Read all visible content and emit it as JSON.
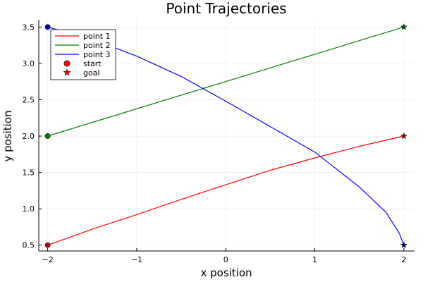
{
  "chart_data": {
    "type": "line",
    "title": "Point Trajectories",
    "xlabel": "x position",
    "ylabel": "y position",
    "xlim": [
      -2.1,
      2.12
    ],
    "ylim": [
      0.42,
      3.6
    ],
    "xticks": [
      -2,
      -1,
      0,
      1,
      2
    ],
    "xtick_labels": [
      "−2",
      "−1",
      "0",
      "1",
      "2"
    ],
    "yticks": [
      0.5,
      1.0,
      1.5,
      2.0,
      2.5,
      3.0,
      3.5
    ],
    "ytick_labels": [
      "0.5",
      "1.0",
      "1.5",
      "2.0",
      "2.5",
      "3.0",
      "3.5"
    ],
    "grid": true,
    "legend_position": "top-left",
    "series": [
      {
        "name": "point 1",
        "color": "#ff0000",
        "x": [
          -2,
          -1.5,
          -1,
          -0.5,
          0,
          0.5,
          1,
          1.5,
          2
        ],
        "y": [
          0.5,
          0.72,
          0.92,
          1.13,
          1.33,
          1.53,
          1.7,
          1.86,
          2.0
        ]
      },
      {
        "name": "point 2",
        "color": "#008000",
        "x": [
          -2,
          2
        ],
        "y": [
          2.0,
          3.5
        ]
      },
      {
        "name": "point 3",
        "color": "#0000ff",
        "x": [
          -2,
          -1.5,
          -1,
          -0.5,
          0,
          0.5,
          1,
          1.5,
          1.8,
          1.95,
          2
        ],
        "y": [
          3.5,
          3.33,
          3.1,
          2.82,
          2.48,
          2.13,
          1.78,
          1.3,
          0.95,
          0.66,
          0.5
        ]
      }
    ],
    "markers": [
      {
        "kind": "start",
        "name": "start",
        "x": -2,
        "y": 0.5,
        "color": "#d00000"
      },
      {
        "kind": "start",
        "name": "start",
        "x": -2,
        "y": 2.0,
        "color": "#008000"
      },
      {
        "kind": "start",
        "name": "start",
        "x": -2,
        "y": 3.5,
        "color": "#0000cc"
      },
      {
        "kind": "goal",
        "name": "goal",
        "x": 2,
        "y": 2.0,
        "color": "#aa0000"
      },
      {
        "kind": "goal",
        "name": "goal",
        "x": 2,
        "y": 3.5,
        "color": "#006400"
      },
      {
        "kind": "goal",
        "name": "goal",
        "x": 2,
        "y": 0.5,
        "color": "#000080"
      }
    ],
    "legend": [
      {
        "label": "point 1",
        "kind": "line",
        "color": "#ff0000"
      },
      {
        "label": "point 2",
        "kind": "line",
        "color": "#008000"
      },
      {
        "label": "point 3",
        "kind": "line",
        "color": "#0000ff"
      },
      {
        "label": "start",
        "kind": "circle",
        "color": "#ff0000"
      },
      {
        "label": "goal",
        "kind": "star",
        "color": "#ff0000"
      }
    ]
  }
}
